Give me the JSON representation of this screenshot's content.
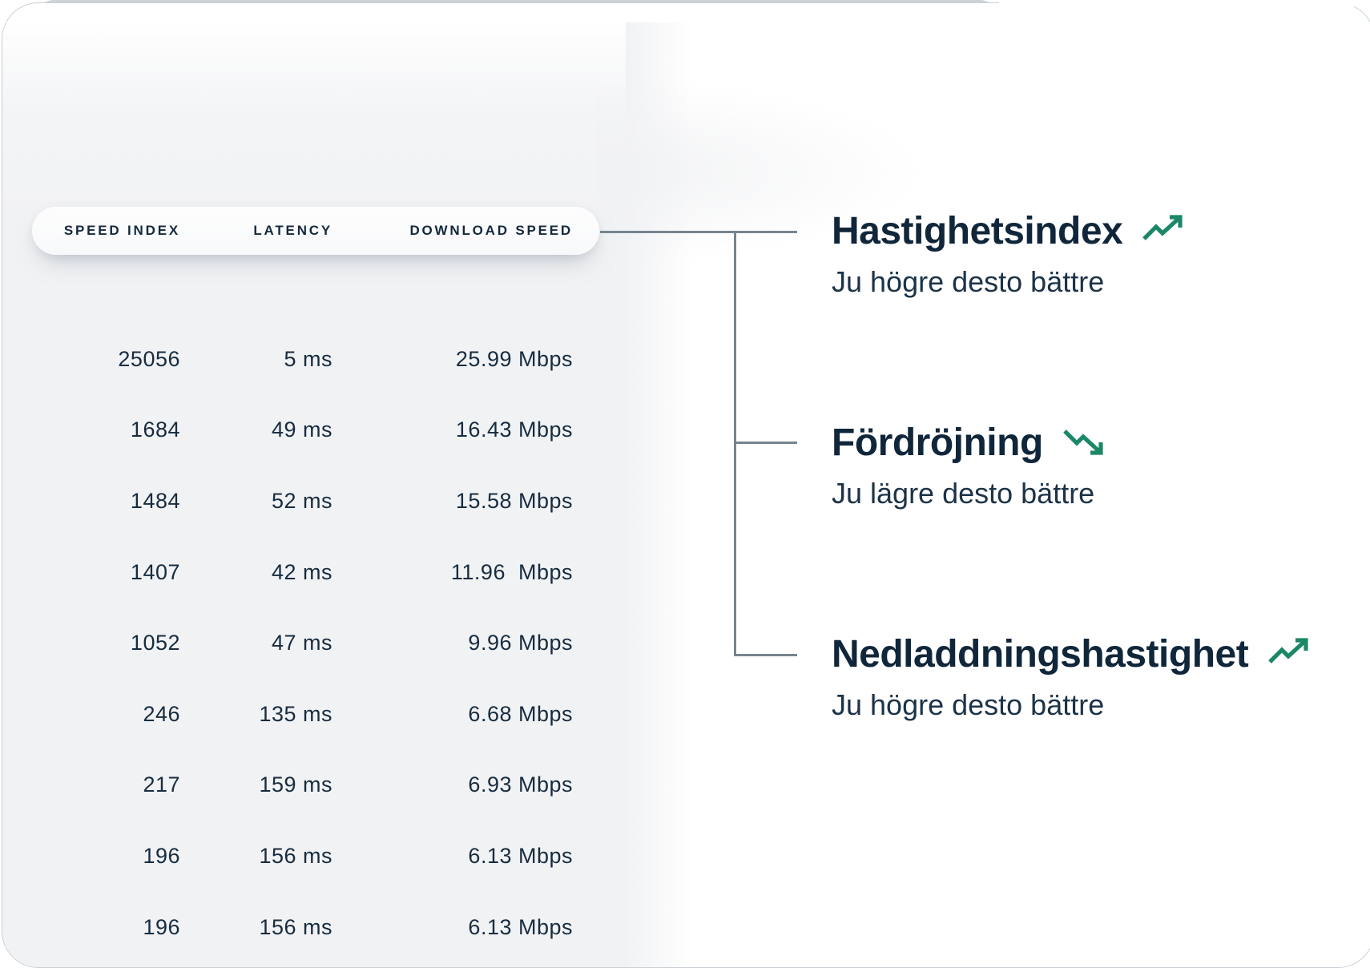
{
  "table": {
    "headers": [
      {
        "label": "SPEED INDEX"
      },
      {
        "label": "LATENCY"
      },
      {
        "label": "DOWNLOAD SPEED"
      }
    ],
    "rows": [
      {
        "speed_index": "25056",
        "latency": "5 ms",
        "download": "25.99 Mbps"
      },
      {
        "speed_index": "1684",
        "latency": "49 ms",
        "download": "16.43 Mbps"
      },
      {
        "speed_index": "1484",
        "latency": "52 ms",
        "download": "15.58 Mbps"
      },
      {
        "speed_index": "1407",
        "latency": "42 ms",
        "download": "11.96  Mbps"
      },
      {
        "speed_index": "1052",
        "latency": "47 ms",
        "download": "9.96 Mbps"
      },
      {
        "speed_index": "246",
        "latency": "135 ms",
        "download": "6.68 Mbps"
      },
      {
        "speed_index": "217",
        "latency": "159 ms",
        "download": "6.93 Mbps"
      },
      {
        "speed_index": "196",
        "latency": "156 ms",
        "download": "6.13 Mbps"
      },
      {
        "speed_index": "196",
        "latency": "156 ms",
        "download": "6.13 Mbps"
      }
    ]
  },
  "annotations": [
    {
      "title": "Hastighetsindex",
      "subtitle": "Ju högre desto bättre",
      "trend": "up"
    },
    {
      "title": "Fördröjning",
      "subtitle": "Ju lägre desto bättre",
      "trend": "down"
    },
    {
      "title": "Nedladdningshastighet",
      "subtitle": "Ju högre desto bättre",
      "trend": "up"
    }
  ],
  "colors": {
    "navy_text": "#14293C",
    "trend_green": "#1B8768",
    "connector_gray": "#76858F",
    "panel_gray": "#F1F2F4",
    "card_edge_gray": "#C8CFD5"
  }
}
